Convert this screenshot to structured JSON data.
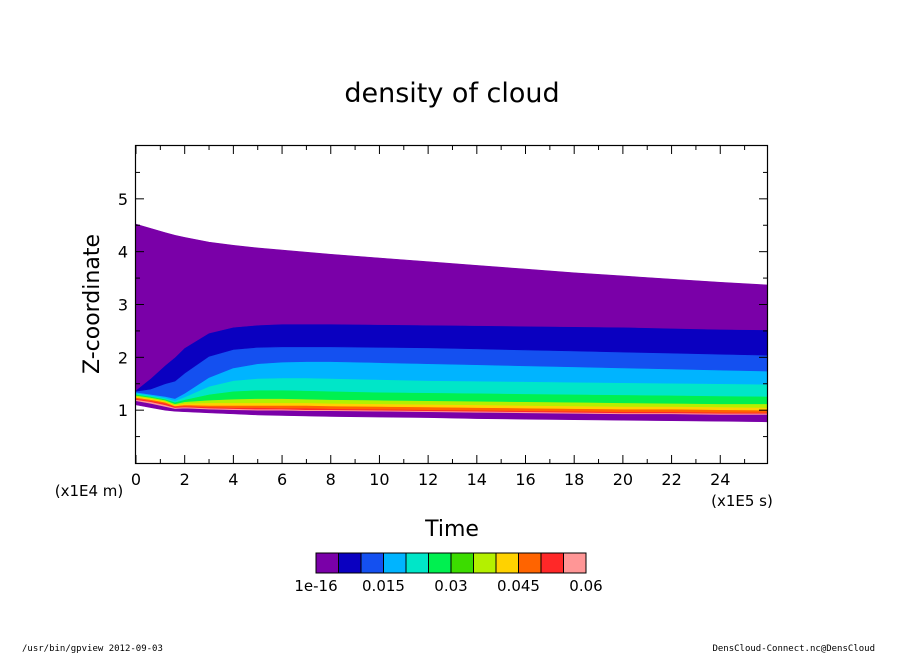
{
  "chart_data": {
    "type": "contour",
    "title": "density of cloud",
    "xlabel": "Time",
    "ylabel": "Z-coordinate",
    "x_unit": "(x1E5 s)",
    "y_unit": "(x1E4 m)",
    "xlim": [
      0,
      25.92
    ],
    "ylim": [
      0,
      6
    ],
    "x_ticks": [
      0,
      2,
      4,
      6,
      8,
      10,
      12,
      14,
      16,
      18,
      20,
      22,
      24
    ],
    "y_ticks": [
      1,
      2,
      3,
      4,
      5
    ],
    "colorbar": {
      "colors": [
        "#7a00a8",
        "#0a00c0",
        "#1450f0",
        "#00b4ff",
        "#00e6c8",
        "#00f050",
        "#3cdc00",
        "#b4f000",
        "#ffd200",
        "#ff6400",
        "#ff2828",
        "#ff9696"
      ],
      "labels": [
        "1e-16",
        "0.015",
        "0.03",
        "0.045",
        "0.06"
      ]
    },
    "bands": {
      "time": [
        0.0,
        0.6,
        1.2,
        1.6,
        2.0,
        3.0,
        4.0,
        5.0,
        6.0,
        7.0,
        8.0,
        10.0,
        12.0,
        14.0,
        16.0,
        18.0,
        20.0,
        22.0,
        24.0,
        25.92
      ],
      "boundaries": [
        [
          1.1,
          1.05,
          1.0,
          0.98,
          0.97,
          0.95,
          0.93,
          0.91,
          0.9,
          0.89,
          0.88,
          0.87,
          0.86,
          0.84,
          0.83,
          0.82,
          0.81,
          0.8,
          0.79,
          0.78
        ],
        [
          1.15,
          1.1,
          1.04,
          1.0,
          1.0,
          0.98,
          0.97,
          0.96,
          0.95,
          0.94,
          0.94,
          0.93,
          0.92,
          0.91,
          0.9,
          0.89,
          0.89,
          0.88,
          0.87,
          0.87
        ],
        [
          1.18,
          1.13,
          1.07,
          1.03,
          1.04,
          1.02,
          1.01,
          1.0,
          1.0,
          0.99,
          0.99,
          0.98,
          0.97,
          0.96,
          0.95,
          0.94,
          0.93,
          0.93,
          0.92,
          0.92
        ],
        [
          1.2,
          1.16,
          1.1,
          1.05,
          1.06,
          1.04,
          1.03,
          1.02,
          1.02,
          1.01,
          1.01,
          1.0,
          0.99,
          0.98,
          0.97,
          0.96,
          0.95,
          0.95,
          0.94,
          0.94
        ],
        [
          1.22,
          1.18,
          1.13,
          1.07,
          1.08,
          1.06,
          1.05,
          1.05,
          1.04,
          1.04,
          1.03,
          1.02,
          1.01,
          1.0,
          0.99,
          0.98,
          0.97,
          0.97,
          0.96,
          0.96
        ],
        [
          1.24,
          1.2,
          1.15,
          1.08,
          1.1,
          1.09,
          1.09,
          1.09,
          1.09,
          1.09,
          1.08,
          1.07,
          1.06,
          1.05,
          1.04,
          1.03,
          1.02,
          1.02,
          1.01,
          1.0
        ],
        [
          1.26,
          1.22,
          1.17,
          1.1,
          1.13,
          1.14,
          1.14,
          1.14,
          1.14,
          1.14,
          1.13,
          1.12,
          1.11,
          1.1,
          1.09,
          1.08,
          1.07,
          1.07,
          1.06,
          1.05
        ],
        [
          1.28,
          1.24,
          1.19,
          1.12,
          1.16,
          1.19,
          1.21,
          1.22,
          1.22,
          1.21,
          1.2,
          1.19,
          1.18,
          1.17,
          1.16,
          1.15,
          1.14,
          1.13,
          1.12,
          1.12
        ],
        [
          1.3,
          1.26,
          1.21,
          1.15,
          1.2,
          1.3,
          1.36,
          1.38,
          1.38,
          1.37,
          1.36,
          1.34,
          1.33,
          1.32,
          1.31,
          1.3,
          1.29,
          1.28,
          1.27,
          1.26
        ],
        [
          1.32,
          1.28,
          1.23,
          1.18,
          1.25,
          1.45,
          1.56,
          1.6,
          1.61,
          1.61,
          1.6,
          1.58,
          1.56,
          1.55,
          1.54,
          1.53,
          1.52,
          1.51,
          1.5,
          1.49
        ],
        [
          1.34,
          1.3,
          1.26,
          1.22,
          1.32,
          1.62,
          1.8,
          1.88,
          1.91,
          1.92,
          1.92,
          1.9,
          1.88,
          1.86,
          1.84,
          1.82,
          1.8,
          1.78,
          1.76,
          1.74
        ],
        [
          1.36,
          1.4,
          1.5,
          1.55,
          1.7,
          2.02,
          2.15,
          2.19,
          2.2,
          2.2,
          2.2,
          2.19,
          2.18,
          2.16,
          2.14,
          2.12,
          2.1,
          2.08,
          2.06,
          2.04
        ],
        [
          1.38,
          1.6,
          1.85,
          2.0,
          2.18,
          2.46,
          2.57,
          2.61,
          2.63,
          2.63,
          2.63,
          2.62,
          2.61,
          2.6,
          2.59,
          2.58,
          2.57,
          2.55,
          2.53,
          2.52
        ],
        [
          4.52,
          4.44,
          4.36,
          4.31,
          4.27,
          4.18,
          4.12,
          4.07,
          4.03,
          3.99,
          3.95,
          3.88,
          3.81,
          3.74,
          3.67,
          3.6,
          3.54,
          3.48,
          3.42,
          3.37
        ]
      ]
    }
  },
  "footer": {
    "left": "/usr/bin/gpview  2012-09-03",
    "right": "DensCloud-Connect.nc@DensCloud"
  }
}
